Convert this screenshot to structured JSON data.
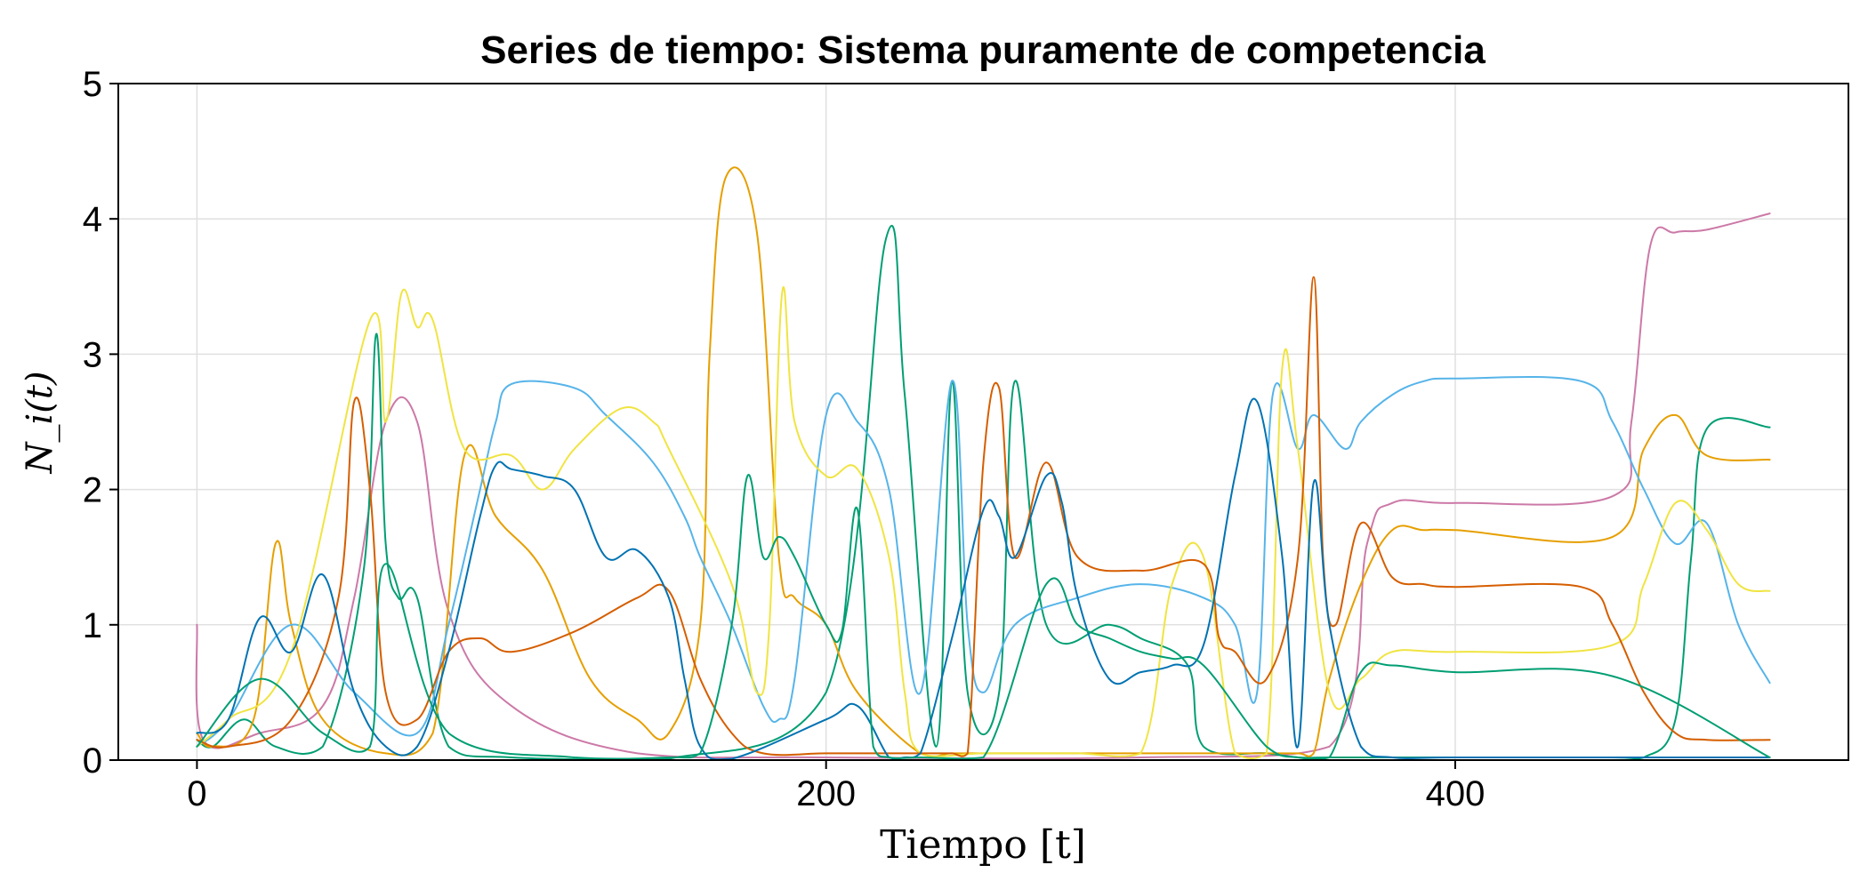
{
  "chart_data": {
    "type": "line",
    "title": "Series de tiempo: Sistema puramente de competencia",
    "xlabel": "Tiempo [t]",
    "ylabel": "N_i(t)",
    "xlim": [
      -25,
      525
    ],
    "ylim": [
      0,
      5
    ],
    "xticks": [
      0,
      200,
      400
    ],
    "yticks": [
      0,
      1,
      2,
      3,
      4,
      5
    ],
    "grid": true,
    "colors": {
      "blue": "#0072b2",
      "orange": "#e69f00",
      "green": "#009e73",
      "pink": "#cc79a7",
      "skyblue": "#56b4e9",
      "vermillion": "#d55e00",
      "yellow": "#f0e442"
    },
    "series": [
      {
        "color": "pink",
        "x": [
          0,
          2,
          20,
          40,
          50,
          60,
          70,
          80,
          100,
          140,
          200,
          300,
          360,
          372,
          380,
          400,
          450,
          456,
          462,
          470,
          480,
          500
        ],
        "y": [
          1,
          0.15,
          0.2,
          0.4,
          1.2,
          2.5,
          2.5,
          1.1,
          0.4,
          0.05,
          0.02,
          0.02,
          0.1,
          1.6,
          1.9,
          1.9,
          1.95,
          2.5,
          3.8,
          3.9,
          3.92,
          4.04
        ]
      },
      {
        "color": "green",
        "x": [
          0,
          5,
          15,
          25,
          40,
          53,
          57,
          60,
          64,
          70,
          80,
          100,
          150,
          200,
          219,
          225,
          235,
          240,
          245,
          255,
          260,
          270,
          290,
          300,
          315,
          320,
          340,
          350,
          360,
          370,
          380,
          400,
          410,
          450,
          460,
          470,
          475,
          480,
          500
        ],
        "y": [
          0.15,
          0.1,
          0.3,
          0.1,
          0.1,
          1.4,
          3.15,
          1.6,
          1.2,
          1.2,
          0.1,
          0.02,
          0.01,
          0.5,
          3.85,
          2.7,
          0.1,
          2.8,
          0.5,
          0.5,
          2.8,
          1.0,
          1.0,
          0.9,
          0.7,
          0.1,
          0.05,
          0.02,
          0.02,
          0.02,
          0.02,
          0.02,
          0.02,
          0.02,
          0.02,
          0.3,
          1.5,
          2.45,
          2.46
        ]
      },
      {
        "color": "orange",
        "x": [
          0,
          5,
          18,
          25,
          30,
          40,
          60,
          75,
          85,
          95,
          110,
          125,
          140,
          150,
          160,
          163,
          168,
          178,
          185,
          190,
          200,
          210,
          230,
          240,
          250,
          260,
          270,
          290,
          310,
          320,
          330,
          340,
          350,
          355,
          360,
          370,
          380,
          390,
          400,
          450,
          460,
          470,
          480,
          500
        ],
        "y": [
          0.2,
          0.1,
          0.3,
          1.6,
          1.0,
          0.3,
          0.05,
          0.2,
          2.25,
          1.8,
          1.4,
          0.6,
          0.3,
          0.2,
          1.0,
          3.0,
          4.3,
          3.9,
          1.5,
          1.2,
          1.0,
          0.5,
          0.05,
          0.05,
          0.05,
          0.05,
          0.05,
          0.05,
          0.05,
          0.05,
          0.05,
          0.05,
          0.05,
          0.05,
          0.6,
          1.3,
          1.7,
          1.7,
          1.7,
          1.65,
          2.3,
          2.55,
          2.25,
          2.22
        ]
      },
      {
        "color": "skyblue",
        "x": [
          0,
          10,
          30,
          50,
          70,
          80,
          90,
          95,
          100,
          120,
          130,
          145,
          155,
          160,
          170,
          180,
          185,
          190,
          200,
          210,
          220,
          230,
          240,
          245,
          250,
          260,
          280,
          300,
          320,
          330,
          337,
          342,
          350,
          355,
          365,
          370,
          380,
          390,
          400,
          440,
          450,
          460,
          470,
          480,
          490,
          500
        ],
        "y": [
          0.1,
          0.3,
          1.0,
          0.5,
          0.2,
          1.0,
          2.0,
          2.5,
          2.78,
          2.75,
          2.55,
          2.2,
          1.8,
          1.5,
          1.0,
          0.4,
          0.3,
          0.6,
          2.55,
          2.5,
          2.0,
          0.5,
          2.8,
          1.0,
          0.5,
          1.0,
          1.2,
          1.3,
          1.2,
          1.0,
          0.5,
          2.7,
          2.3,
          2.55,
          2.3,
          2.5,
          2.7,
          2.8,
          2.82,
          2.8,
          2.5,
          2.0,
          1.6,
          1.75,
          1.0,
          0.57
        ]
      },
      {
        "color": "yellow",
        "x": [
          0,
          10,
          30,
          55,
          60,
          65,
          70,
          75,
          85,
          100,
          110,
          120,
          135,
          145,
          150,
          170,
          178,
          182,
          186,
          190,
          200,
          210,
          220,
          225,
          230,
          250,
          270,
          280,
          300,
          310,
          320,
          330,
          340,
          345,
          350,
          360,
          370,
          380,
          400,
          450,
          460,
          470,
          480,
          490,
          500
        ],
        "y": [
          0.1,
          0.3,
          0.8,
          3.25,
          2.5,
          3.45,
          3.2,
          3.25,
          2.3,
          2.25,
          2.0,
          2.3,
          2.6,
          2.5,
          2.3,
          1.3,
          0.5,
          1.0,
          3.45,
          2.5,
          2.1,
          2.15,
          1.5,
          0.5,
          0.05,
          0.05,
          0.05,
          0.05,
          0.05,
          1.3,
          1.5,
          0.05,
          0.05,
          2.9,
          2.3,
          0.5,
          0.6,
          0.8,
          0.8,
          0.85,
          1.3,
          1.9,
          1.7,
          1.3,
          1.25
        ]
      },
      {
        "color": "vermillion",
        "x": [
          0,
          10,
          30,
          45,
          50,
          55,
          60,
          70,
          80,
          90,
          100,
          120,
          140,
          150,
          160,
          170,
          180,
          200,
          220,
          235,
          240,
          245,
          250,
          255,
          260,
          270,
          280,
          300,
          320,
          325,
          330,
          340,
          350,
          355,
          358,
          362,
          370,
          380,
          390,
          400,
          440,
          450,
          460,
          470,
          480,
          500
        ],
        "y": [
          0.15,
          0.1,
          0.3,
          1.2,
          2.65,
          2.0,
          0.5,
          0.3,
          0.8,
          0.9,
          0.8,
          0.95,
          1.2,
          1.25,
          0.6,
          0.2,
          0.05,
          0.05,
          0.05,
          0.05,
          0.05,
          0.05,
          2.2,
          2.75,
          1.5,
          2.2,
          1.5,
          1.4,
          1.45,
          0.9,
          0.8,
          0.6,
          1.5,
          3.57,
          1.5,
          1.0,
          1.75,
          1.35,
          1.3,
          1.28,
          1.28,
          1.0,
          0.5,
          0.2,
          0.15,
          0.15
        ]
      },
      {
        "color": "blue",
        "x": [
          0,
          10,
          20,
          30,
          40,
          50,
          60,
          70,
          80,
          90,
          95,
          100,
          110,
          120,
          130,
          140,
          150,
          155,
          160,
          170,
          200,
          210,
          220,
          225,
          230,
          240,
          250,
          255,
          260,
          270,
          275,
          280,
          290,
          300,
          310,
          320,
          330,
          337,
          345,
          350,
          355,
          360,
          370,
          380,
          400,
          450,
          500
        ],
        "y": [
          0.2,
          0.3,
          1.05,
          0.8,
          1.37,
          0.5,
          0.1,
          0.1,
          0.8,
          1.8,
          2.18,
          2.15,
          2.1,
          2.0,
          1.5,
          1.55,
          1.2,
          0.6,
          0.1,
          0.01,
          0.3,
          0.4,
          0.02,
          0.02,
          0.05,
          0.9,
          1.85,
          1.8,
          1.5,
          2.1,
          1.9,
          1.2,
          0.6,
          0.65,
          0.7,
          0.85,
          2.1,
          2.65,
          1.5,
          0.1,
          2.05,
          1.0,
          0.1,
          0.02,
          0.02,
          0.02,
          0.02
        ]
      },
      {
        "color": "green",
        "x": [
          0,
          20,
          40,
          55,
          60,
          80,
          120,
          150,
          160,
          170,
          175,
          180,
          185,
          190,
          200,
          205,
          210,
          215,
          220,
          230,
          250,
          270,
          280,
          290,
          300,
          310,
          320,
          340,
          350,
          360,
          370,
          380,
          400,
          450,
          500
        ],
        "y": [
          0.1,
          0.6,
          0.2,
          0.1,
          1.45,
          0.2,
          0.02,
          0.02,
          0.05,
          1.0,
          2.1,
          1.5,
          1.65,
          1.5,
          1.0,
          0.95,
          1.85,
          0.1,
          0.02,
          0.02,
          0.02,
          1.3,
          1.0,
          0.9,
          0.8,
          0.75,
          0.7,
          0.1,
          0.02,
          0.02,
          0.65,
          0.7,
          0.65,
          0.62,
          0.02
        ]
      }
    ]
  }
}
